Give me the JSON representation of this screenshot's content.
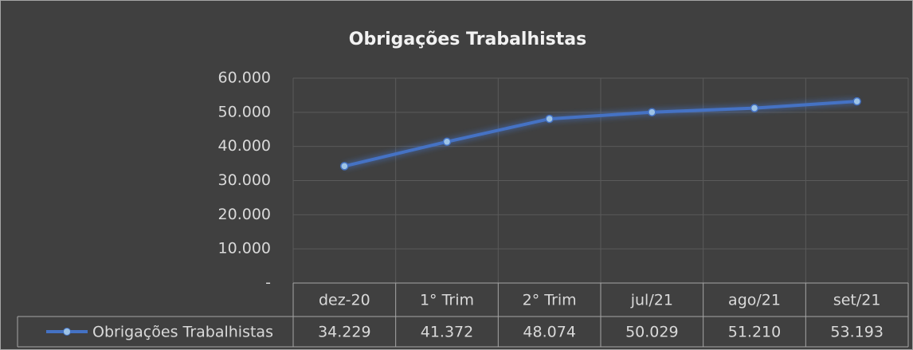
{
  "chart_data": {
    "type": "line",
    "title": "Obrigações Trabalhistas",
    "categories": [
      "dez-20",
      "1° Trim",
      "2° Trim",
      "jul/21",
      "ago/21",
      "set/21"
    ],
    "series": [
      {
        "name": "Obrigações Trabalhistas",
        "color": "#4472c4",
        "values": [
          34229,
          41372,
          48074,
          50029,
          51210,
          53193
        ],
        "value_labels": [
          "34.229",
          "41.372",
          "48.074",
          "50.029",
          "51.210",
          "53.193"
        ]
      }
    ],
    "ylim": [
      0,
      60000
    ],
    "yticks": [
      {
        "value": 0,
        "label": "-"
      },
      {
        "value": 10000,
        "label": "10.000"
      },
      {
        "value": 20000,
        "label": "20.000"
      },
      {
        "value": 30000,
        "label": "30.000"
      },
      {
        "value": 40000,
        "label": "40.000"
      },
      {
        "value": 50000,
        "label": "50.000"
      },
      {
        "value": 60000,
        "label": "60.000"
      }
    ],
    "grid": true
  }
}
